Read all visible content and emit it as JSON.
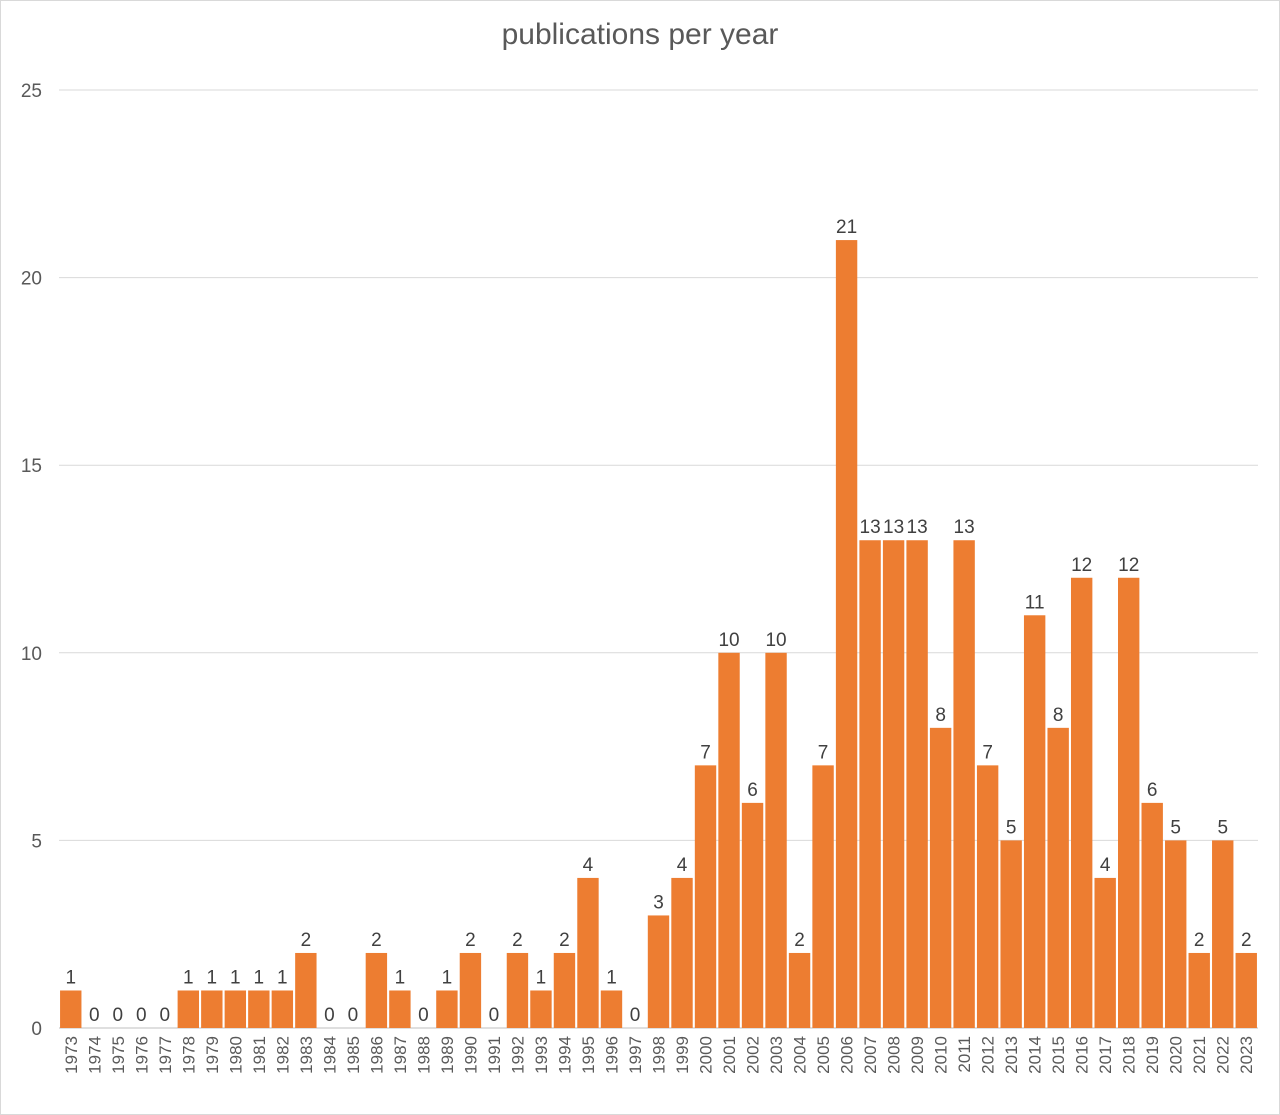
{
  "chart_data": {
    "type": "bar",
    "title": "publications per year",
    "xlabel": "",
    "ylabel": "",
    "ylim": [
      0,
      25
    ],
    "yticks": [
      0,
      5,
      10,
      15,
      20,
      25
    ],
    "grid": true,
    "bar_color": "#ED7D31",
    "categories": [
      "1973",
      "1974",
      "1975",
      "1976",
      "1977",
      "1978",
      "1979",
      "1980",
      "1981",
      "1982",
      "1983",
      "1984",
      "1985",
      "1986",
      "1987",
      "1988",
      "1989",
      "1990",
      "1991",
      "1992",
      "1993",
      "1994",
      "1995",
      "1996",
      "1997",
      "1998",
      "1999",
      "2000",
      "2001",
      "2002",
      "2003",
      "2004",
      "2005",
      "2006",
      "2007",
      "2008",
      "2009",
      "2010",
      "2011",
      "2012",
      "2013",
      "2014",
      "2015",
      "2016",
      "2017",
      "2018",
      "2019",
      "2020",
      "2021",
      "2022",
      "2023"
    ],
    "values": [
      1,
      0,
      0,
      0,
      0,
      1,
      1,
      1,
      1,
      1,
      2,
      0,
      0,
      2,
      1,
      0,
      1,
      2,
      0,
      2,
      1,
      2,
      4,
      1,
      0,
      3,
      4,
      7,
      10,
      6,
      10,
      2,
      7,
      21,
      13,
      13,
      13,
      8,
      13,
      7,
      5,
      11,
      8,
      12,
      4,
      12,
      6,
      5,
      2,
      5,
      2
    ]
  }
}
